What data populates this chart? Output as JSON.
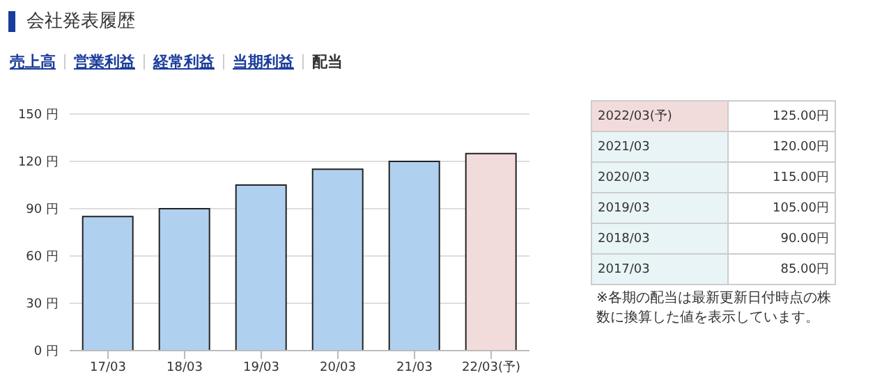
{
  "chart_data": {
    "type": "bar",
    "title": "会社発表履歴",
    "categories": [
      "17/03",
      "18/03",
      "19/03",
      "20/03",
      "21/03",
      "22/03(予)"
    ],
    "values": [
      85,
      90,
      105,
      115,
      120,
      125
    ],
    "colors": [
      "#b0d0ef",
      "#b0d0ef",
      "#b0d0ef",
      "#b0d0ef",
      "#b0d0ef",
      "#f2dcdb"
    ],
    "ylim": [
      0,
      150
    ],
    "yticks": [
      {
        "value": 0,
        "label": "0 円"
      },
      {
        "value": 30,
        "label": "30 円"
      },
      {
        "value": 60,
        "label": "60 円"
      },
      {
        "value": 90,
        "label": "90 円"
      },
      {
        "value": 120,
        "label": "120 円"
      },
      {
        "value": 150,
        "label": "150 円"
      }
    ],
    "grid": "y",
    "legend": false,
    "annotations": [
      "売上高",
      "営業利益",
      "経常利益",
      "当期利益",
      "配当",
      "2022/03(予)",
      "125.00円",
      "2021/03",
      "120.00円",
      "2020/03",
      "115.00円",
      "2019/03",
      "105.00円",
      "2018/03",
      "90.00円",
      "2017/03",
      "85.00円",
      "※各期の配当は最新更新日付時点の株数に換算した値を表示しています。"
    ]
  }
}
